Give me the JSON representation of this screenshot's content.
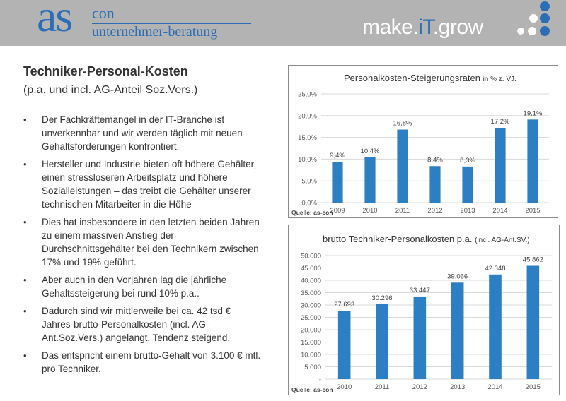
{
  "header": {
    "logo_as": "as",
    "logo_con": "con",
    "logo_sub": "unternehmer-beratung",
    "slogan_pre": "make.",
    "slogan_it": "iT",
    "slogan_post": ".grow",
    "accent": "#2d6db5",
    "band_color": "#b3b3b3"
  },
  "content": {
    "title": "Techniker-Personal-Kosten",
    "subtitle": "(p.a. und incl. AG-Anteil Soz.Vers.)",
    "bullets": [
      "Der Fachkräftemangel in der IT-Branche ist unverkennbar und wir werden täglich mit neuen Gehaltsforderungen konfrontiert.",
      "Hersteller und Industrie bieten oft höhere Gehälter, einen stressloseren Arbeitsplatz und höhere Sozialleistungen – das treibt die Gehälter unserer technischen Mitarbeiter in die Höhe",
      "Dies hat insbesondere in den letzten beiden Jahren zu einem massiven Anstieg der Durchschnittsgehälter bei den Technikern zwischen 17% und 19% geführt.",
      "Aber auch in den Vorjahren lag die jährliche Gehaltssteigerung bei rund 10% p.a..",
      "Dadurch sind wir mittlerweile bei ca. 42 tsd € Jahres-brutto-Personalkosten (incl. AG-Ant.Soz.Vers.) angelangt, Tendenz steigend.",
      "Das entspricht einem brutto-Gehalt von 3.100 € mtl. pro Techniker."
    ],
    "bullet_symbol": "•"
  },
  "chart_data": [
    {
      "type": "bar",
      "title": "Personalkosten-Steigerungsraten",
      "title_suffix": "in % z. VJ.",
      "categories": [
        "2009",
        "2010",
        "2011",
        "2012",
        "2013",
        "2014",
        "2015"
      ],
      "values": [
        9.4,
        10.4,
        16.8,
        8.4,
        8.3,
        17.2,
        19.1
      ],
      "data_labels": [
        "9,4%",
        "10,4%",
        "16,8%",
        "8,4%",
        "8,3%",
        "17,2%",
        "19,1%"
      ],
      "ylim": [
        0,
        25
      ],
      "yticks": [
        0,
        5,
        10,
        15,
        20,
        25
      ],
      "ytick_labels": [
        "0,0%",
        "5,0%",
        "10,0%",
        "15,0%",
        "20,0%",
        "25,0%"
      ],
      "source": "Quelle: as-con",
      "bar_color": "#2d7fc4",
      "grid": true
    },
    {
      "type": "bar",
      "title": "brutto Techniker-Personalkosten p.a.",
      "title_suffix": "(incl. AG-Ant.SV.)",
      "categories": [
        "2010",
        "2011",
        "2012",
        "2013",
        "2014",
        "2015"
      ],
      "values": [
        27693,
        30296,
        33447,
        39066,
        42348,
        45862
      ],
      "data_labels": [
        "27.693",
        "30.296",
        "33.447",
        "39.066",
        "42.348",
        "45.862"
      ],
      "ylim": [
        0,
        50000
      ],
      "yticks": [
        0,
        5000,
        10000,
        15000,
        20000,
        25000,
        30000,
        35000,
        40000,
        45000,
        50000
      ],
      "ytick_labels": [
        "-",
        "5.000",
        "10.000",
        "15.000",
        "20.000",
        "25.000",
        "30.000",
        "35.000",
        "40.000",
        "45.000",
        "50.000"
      ],
      "source": "Quelle: as-con",
      "bar_color": "#2d7fc4",
      "grid": true
    }
  ]
}
